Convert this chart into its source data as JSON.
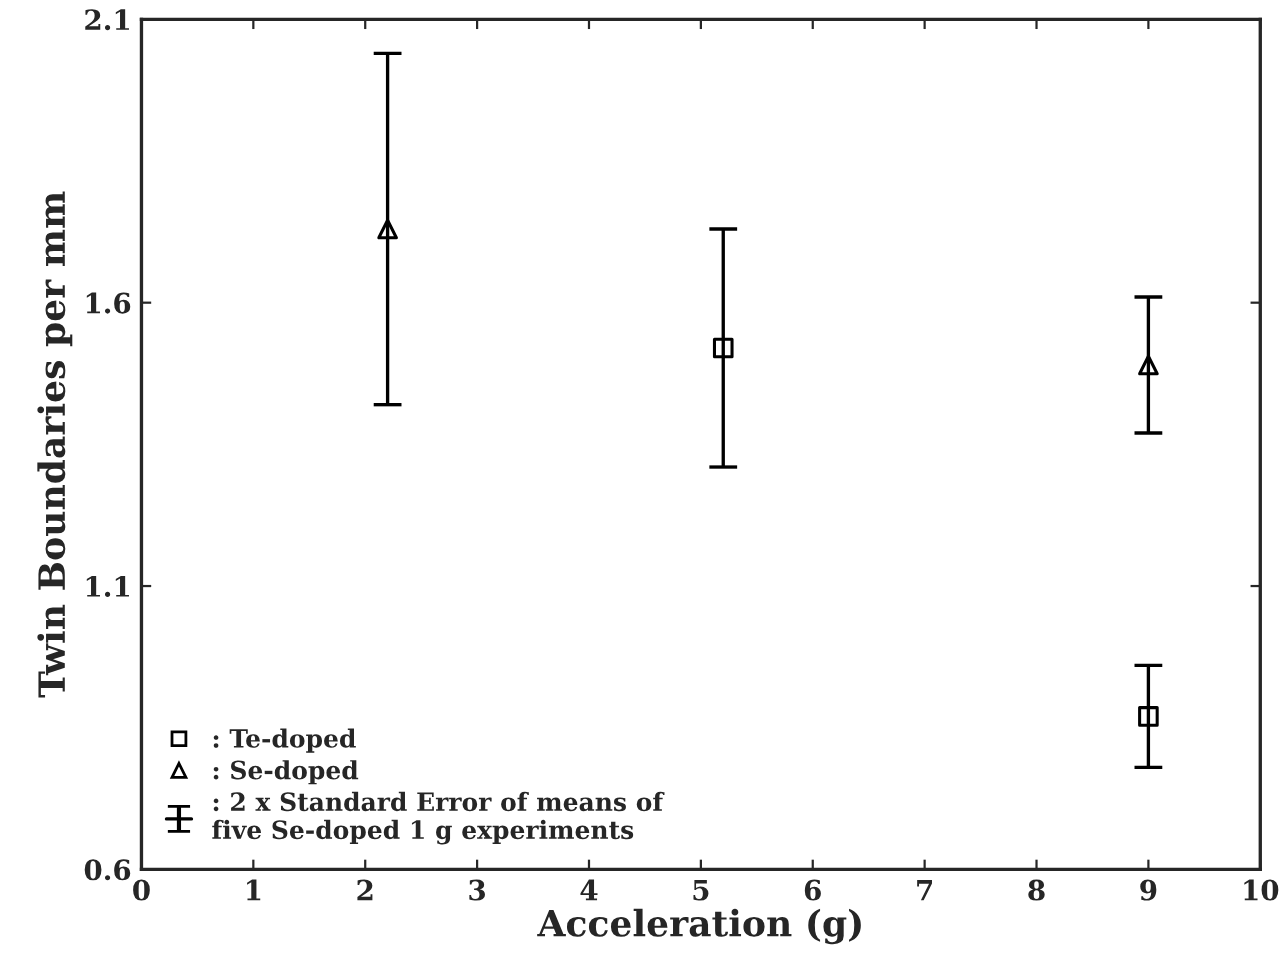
{
  "chart_data": {
    "type": "scatter",
    "xlabel": "Acceleration (g)",
    "ylabel": "Twin Boundaries per mm",
    "xlim": [
      0,
      10
    ],
    "xticks": [
      0,
      1,
      2,
      3,
      4,
      5,
      6,
      7,
      8,
      9,
      10
    ],
    "ylim": [
      0.6,
      2.1
    ],
    "yticks": [
      0.6,
      1.1,
      1.6,
      2.1
    ],
    "grid": false,
    "legend": "bottom left",
    "series": [
      {
        "name": ": Te-doped",
        "color": "#000000",
        "marker": "square",
        "x": [
          5.2,
          9
        ],
        "values": [
          1.52,
          0.87
        ],
        "errors": [
          0.21,
          0.09
        ]
      },
      {
        "name": ": Se-doped",
        "color": "#000000",
        "marker": "triangle",
        "x": [
          2.2,
          9
        ],
        "values": [
          1.73,
          1.49
        ],
        "errors": [
          0.31,
          0.12
        ]
      }
    ],
    "annotations": [
      ": 2 x Standard Error of means of\nfive Se-doped 1 g experiments"
    ]
  }
}
